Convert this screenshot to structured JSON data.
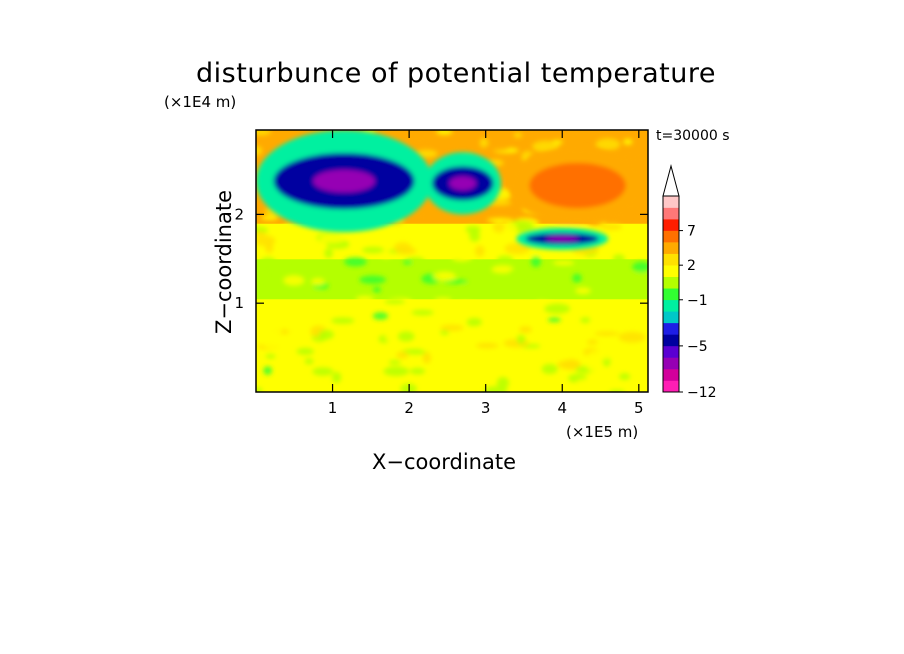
{
  "chart_data": {
    "type": "heatmap",
    "title": "disturbunce of potential temperature",
    "xlabel": "X−coordinate",
    "ylabel": "Z−coordinate",
    "x_unit_label": "(×1E5 m)",
    "y_unit_label": "(×1E4 m)",
    "annotation": "t=30000 s",
    "xlim": [
      0,
      5.12
    ],
    "ylim": [
      0,
      2.95
    ],
    "x_ticks": [
      1,
      2,
      3,
      4,
      5
    ],
    "x_tick_labels": [
      "1",
      "2",
      "3",
      "4",
      "5"
    ],
    "y_ticks": [
      1,
      2
    ],
    "y_tick_labels": [
      "1",
      "2"
    ],
    "colorbar": {
      "levels": [
        -12,
        -10,
        -8,
        -6,
        -5,
        -4,
        -3,
        -2,
        -1,
        0,
        1,
        2,
        3,
        5,
        7,
        9,
        11
      ],
      "tick_values": [
        -12,
        -5,
        -1,
        2,
        7
      ],
      "tick_labels": [
        "−12",
        "−5",
        "−1",
        "2",
        "7"
      ],
      "colors": [
        "#ff1eb4",
        "#d2009b",
        "#9600b4",
        "#5a00d2",
        "#0000a0",
        "#1e1ee6",
        "#00c8c8",
        "#00f0a0",
        "#32ff32",
        "#b4ff00",
        "#ffff00",
        "#ffe100",
        "#ffaa00",
        "#ff7000",
        "#ff1e00",
        "#ff7878",
        "#ffc8c8"
      ],
      "extend": "max"
    },
    "field_bands": [
      {
        "z": [
          0.0,
          0.35
        ],
        "value": 1.0
      },
      {
        "z": [
          0.35,
          0.75
        ],
        "value": 1.5
      },
      {
        "z": [
          0.75,
          1.05
        ],
        "value": 1.0
      },
      {
        "z": [
          1.05,
          1.2
        ],
        "value": 0.3
      },
      {
        "z": [
          1.2,
          1.5
        ],
        "value": 0.5
      },
      {
        "z": [
          1.5,
          1.9
        ],
        "value": 1.5
      },
      {
        "z": [
          1.9,
          2.95
        ],
        "value": 3.0
      }
    ],
    "features": [
      {
        "name": "cold band upper left",
        "x": [
          0.0,
          2.3
        ],
        "z": [
          1.8,
          2.95
        ],
        "value": -5
      },
      {
        "name": "cold band near x=2.8",
        "x": [
          2.2,
          3.2
        ],
        "z": [
          2.0,
          2.7
        ],
        "value": -5
      },
      {
        "name": "cold band near x=4",
        "x": [
          3.4,
          4.6
        ],
        "z": [
          1.6,
          1.85
        ],
        "value": -5
      },
      {
        "name": "warm region upper right",
        "x": [
          3.3,
          5.1
        ],
        "z": [
          1.9,
          2.75
        ],
        "value": 5
      }
    ]
  }
}
